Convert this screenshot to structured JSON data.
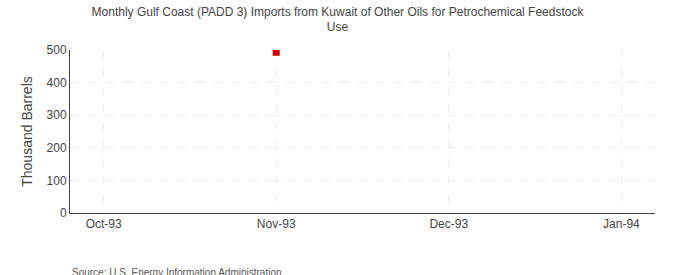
{
  "chart_data": {
    "type": "scatter",
    "title": "Monthly Gulf Coast (PADD 3) Imports from Kuwait of Other Oils for Petrochemical Feedstock\nUse",
    "ylabel": "Thousand Barrels",
    "annotations": [
      "Source: U.S. Energy Information Administration"
    ],
    "categories": [
      "Oct-93",
      "Nov-93",
      "Dec-93",
      "Jan-94"
    ],
    "values": [
      null,
      493,
      null,
      null
    ],
    "color": "#cc0000",
    "marker": "square",
    "ylim": [
      0,
      500
    ],
    "yticks": [
      0,
      100,
      200,
      300,
      400,
      500
    ],
    "grid": true
  }
}
